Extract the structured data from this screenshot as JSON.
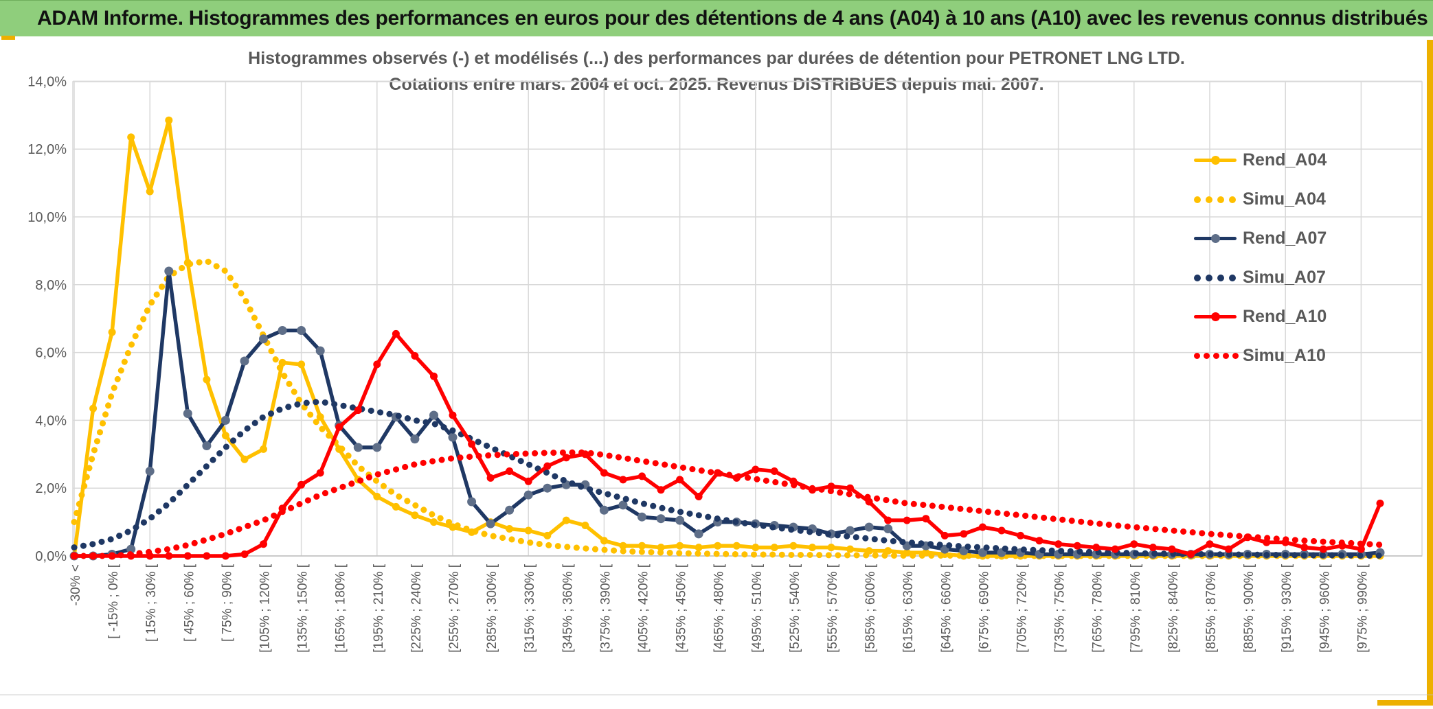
{
  "header": {
    "title": "ADAM Informe. Histogrammes des performances en euros pour des détentions de 4 ans (A04) à 10 ans (A10) avec les revenus connus distribués"
  },
  "chart_data": {
    "type": "line",
    "title": "Histogrammes observés (-) et modélisés (...) des performances par durées de détention pour PETRONET LNG LTD.",
    "subtitle": "Cotations entre mars. 2004 et oct. 2025. Revenus DISTRIBUES depuis mai. 2007.",
    "xlabel": "",
    "ylabel": "",
    "ylim": [
      0,
      14
    ],
    "grid": true,
    "legend_position": "right",
    "n_bins": 70,
    "x_tick_every_n_bins": 2,
    "y_tick_labels": [
      "0,0%",
      "2,0%",
      "4,0%",
      "6,0%",
      "8,0%",
      "10,0%",
      "12,0%",
      "14,0%"
    ],
    "x_tick_labels": [
      "-30% <",
      "[ -15% ; 0% [",
      "[ 15% ; 30% [",
      "[ 45% ; 60% [",
      "[ 75% ; 90% [",
      "[105% ; 120% [",
      "[135% ; 150% [",
      "[165% ; 180% [",
      "[195% ; 210% [",
      "[225% ; 240% [",
      "[255% ; 270% [",
      "[285% ; 300% [",
      "[315% ; 330% [",
      "[345% ; 360% [",
      "[375% ; 390% [",
      "[405% ; 420% [",
      "[435% ; 450% [",
      "[465% ; 480% [",
      "[495% ; 510% [",
      "[525% ; 540% [",
      "[555% ; 570% [",
      "[585% ; 600% [",
      "[615% ; 630% [",
      "[645% ; 660% [",
      "[675% ; 690% [",
      "[705% ; 720% [",
      "[735% ; 750% [",
      "[765% ; 780% [",
      "[795% ; 810% [",
      "[825% ; 840% [",
      "[855% ; 870% [",
      "[885% ; 900% [",
      "[915% ; 930% [",
      "[945% ; 960% [",
      "[975% ; 990% ["
    ],
    "value_unit": "%",
    "series": [
      {
        "name": "Rend_A04",
        "color": "#FFC000",
        "style": "solid",
        "values": [
          0,
          4.35,
          6.6,
          12.35,
          10.75,
          12.85,
          8.65,
          5.2,
          3.55,
          2.85,
          3.15,
          5.7,
          5.65,
          4.1,
          3.15,
          2.25,
          1.75,
          1.45,
          1.2,
          1.0,
          0.85,
          0.7,
          1.0,
          0.8,
          0.75,
          0.6,
          1.05,
          0.9,
          0.45,
          0.3,
          0.3,
          0.25,
          0.3,
          0.25,
          0.3,
          0.3,
          0.25,
          0.25,
          0.3,
          0.25,
          0.25,
          0.2,
          0.15,
          0.15,
          0.1,
          0.1,
          0.05,
          0,
          0,
          0,
          0,
          0,
          0,
          0,
          0,
          0,
          0,
          0,
          0,
          0,
          0,
          0,
          0,
          0,
          0,
          0,
          0,
          0,
          0,
          0
        ]
      },
      {
        "name": "Simu_A04",
        "color": "#FFC000",
        "style": "dotted",
        "values": [
          1.0,
          3.0,
          4.8,
          6.2,
          7.4,
          8.25,
          8.6,
          8.7,
          8.4,
          7.6,
          6.5,
          5.4,
          4.5,
          3.8,
          3.25,
          2.65,
          2.2,
          1.8,
          1.5,
          1.2,
          0.95,
          0.75,
          0.6,
          0.5,
          0.4,
          0.32,
          0.27,
          0.22,
          0.18,
          0.14,
          0.12,
          0.1,
          0.08,
          0.07,
          0.06,
          0.05,
          0.04,
          0.04,
          0.03,
          0.03,
          0.02,
          0.02,
          0.02,
          0.01,
          0.01,
          0.01,
          0.01,
          0.01,
          0,
          0,
          0,
          0,
          0,
          0,
          0,
          0,
          0,
          0,
          0,
          0,
          0,
          0,
          0,
          0,
          0,
          0,
          0,
          0,
          0,
          0
        ]
      },
      {
        "name": "Rend_A07",
        "color": "#1F3864",
        "style": "solid",
        "marker_color": "#5E6E88",
        "values": [
          0,
          0,
          0.05,
          0.2,
          2.5,
          8.4,
          4.2,
          3.25,
          4.0,
          5.75,
          6.4,
          6.65,
          6.65,
          6.05,
          3.85,
          3.2,
          3.2,
          4.1,
          3.45,
          4.15,
          3.5,
          1.6,
          0.95,
          1.35,
          1.8,
          2.0,
          2.1,
          2.1,
          1.35,
          1.5,
          1.15,
          1.1,
          1.05,
          0.65,
          1.0,
          1.0,
          0.95,
          0.9,
          0.85,
          0.8,
          0.65,
          0.75,
          0.85,
          0.8,
          0.3,
          0.3,
          0.2,
          0.15,
          0.1,
          0.1,
          0.1,
          0.05,
          0.05,
          0.05,
          0.05,
          0.05,
          0.05,
          0.05,
          0.05,
          0.05,
          0.05,
          0.05,
          0.05,
          0.05,
          0.05,
          0.05,
          0.05,
          0.05,
          0.05,
          0.1
        ]
      },
      {
        "name": "Simu_A07",
        "color": "#1F3864",
        "style": "dotted",
        "values": [
          0.25,
          0.35,
          0.5,
          0.75,
          1.1,
          1.55,
          2.1,
          2.65,
          3.2,
          3.7,
          4.1,
          4.35,
          4.5,
          4.55,
          4.45,
          4.35,
          4.25,
          4.15,
          4.0,
          3.9,
          3.7,
          3.45,
          3.2,
          2.95,
          2.7,
          2.45,
          2.2,
          2.0,
          1.85,
          1.7,
          1.55,
          1.42,
          1.3,
          1.2,
          1.1,
          1.0,
          0.92,
          0.84,
          0.77,
          0.7,
          0.63,
          0.57,
          0.51,
          0.45,
          0.4,
          0.36,
          0.32,
          0.28,
          0.25,
          0.22,
          0.19,
          0.17,
          0.15,
          0.13,
          0.11,
          0.1,
          0.08,
          0.07,
          0.06,
          0.05,
          0.05,
          0.04,
          0.04,
          0.03,
          0.03,
          0.02,
          0.02,
          0.02,
          0.01,
          0.01
        ]
      },
      {
        "name": "Rend_A10",
        "color": "#FF0000",
        "style": "solid",
        "values": [
          0,
          0,
          0,
          0,
          0,
          0,
          0,
          0,
          0,
          0.05,
          0.35,
          1.4,
          2.1,
          2.45,
          3.8,
          4.3,
          5.65,
          6.55,
          5.9,
          5.3,
          4.15,
          3.3,
          2.3,
          2.5,
          2.2,
          2.65,
          2.9,
          3.0,
          2.45,
          2.25,
          2.35,
          1.95,
          2.25,
          1.75,
          2.45,
          2.3,
          2.55,
          2.5,
          2.2,
          1.95,
          2.05,
          2.0,
          1.6,
          1.05,
          1.05,
          1.1,
          0.6,
          0.65,
          0.85,
          0.75,
          0.6,
          0.45,
          0.35,
          0.3,
          0.25,
          0.2,
          0.35,
          0.25,
          0.2,
          0.05,
          0.35,
          0.2,
          0.55,
          0.4,
          0.4,
          0.25,
          0.2,
          0.3,
          0.2,
          1.55
        ]
      },
      {
        "name": "Simu_A10",
        "color": "#FF0000",
        "style": "dotted",
        "values": [
          0,
          0,
          0,
          0.05,
          0.12,
          0.2,
          0.32,
          0.48,
          0.65,
          0.85,
          1.05,
          1.3,
          1.55,
          1.8,
          2.0,
          2.2,
          2.4,
          2.55,
          2.7,
          2.8,
          2.88,
          2.93,
          2.97,
          3.0,
          3.02,
          3.04,
          3.05,
          3.05,
          2.98,
          2.89,
          2.8,
          2.71,
          2.62,
          2.53,
          2.44,
          2.36,
          2.27,
          2.18,
          2.09,
          2.0,
          1.91,
          1.82,
          1.73,
          1.64,
          1.55,
          1.5,
          1.44,
          1.38,
          1.32,
          1.26,
          1.2,
          1.14,
          1.08,
          1.02,
          0.96,
          0.9,
          0.85,
          0.8,
          0.75,
          0.7,
          0.65,
          0.61,
          0.57,
          0.53,
          0.49,
          0.45,
          0.42,
          0.39,
          0.36,
          0.33
        ]
      }
    ]
  },
  "colors": {
    "header_bg": "#8FCE7C",
    "accent_gold": "#EDB000",
    "text_gray": "#595959",
    "grid": "#D9D9D9",
    "axis": "#BFBFBF"
  }
}
